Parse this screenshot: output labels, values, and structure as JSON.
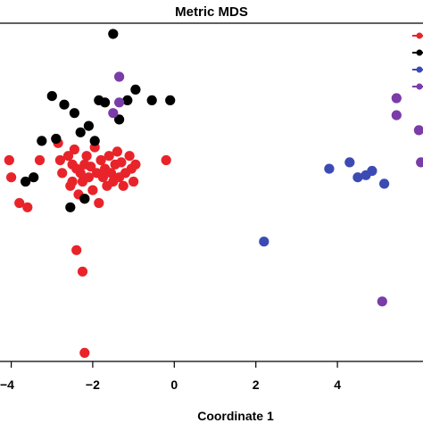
{
  "chart_data": {
    "type": "scatter",
    "title": "Metric  MDS",
    "xlabel": "Coordinate 1",
    "ylabel": "",
    "x_ticks": [
      "−4",
      "−2",
      "0",
      "2",
      "4"
    ],
    "x_tick_values": [
      -4,
      -2,
      0,
      2,
      4
    ],
    "xlim": [
      -4.1,
      6.1
    ],
    "ylim": [
      -4.3,
      3.6
    ],
    "grid": false,
    "legend": "top-right",
    "series": [
      {
        "color": "#e8242a",
        "points": [
          [
            -4.05,
            0.4
          ],
          [
            -4.0,
            0.0
          ],
          [
            -3.8,
            -0.6
          ],
          [
            -3.6,
            -0.7
          ],
          [
            -3.3,
            0.4
          ],
          [
            -2.85,
            0.8
          ],
          [
            -2.8,
            0.4
          ],
          [
            -2.75,
            0.1
          ],
          [
            -2.6,
            0.5
          ],
          [
            -2.55,
            -0.2
          ],
          [
            -2.5,
            0.3
          ],
          [
            -2.5,
            -0.1
          ],
          [
            -2.45,
            0.65
          ],
          [
            -2.4,
            0.2
          ],
          [
            -2.35,
            -0.4
          ],
          [
            -2.3,
            0.1
          ],
          [
            -2.25,
            -0.1
          ],
          [
            -2.2,
            0.3
          ],
          [
            -2.2,
            -0.5
          ],
          [
            -2.15,
            0.5
          ],
          [
            -2.1,
            0.0
          ],
          [
            -2.05,
            0.25
          ],
          [
            -2.0,
            -0.3
          ],
          [
            -1.95,
            0.7
          ],
          [
            -1.9,
            0.1
          ],
          [
            -1.85,
            -0.6
          ],
          [
            -1.8,
            0.4
          ],
          [
            -1.75,
            0.0
          ],
          [
            -1.7,
            0.2
          ],
          [
            -1.65,
            -0.2
          ],
          [
            -1.6,
            0.5
          ],
          [
            -1.55,
            0.1
          ],
          [
            -1.5,
            -0.1
          ],
          [
            -1.45,
            0.3
          ],
          [
            -1.4,
            0.6
          ],
          [
            -1.35,
            0.0
          ],
          [
            -1.3,
            0.35
          ],
          [
            -1.25,
            -0.2
          ],
          [
            -1.2,
            0.1
          ],
          [
            -1.1,
            0.5
          ],
          [
            -1.05,
            0.2
          ],
          [
            -1.0,
            -0.1
          ],
          [
            -0.95,
            0.3
          ],
          [
            -0.2,
            0.4
          ],
          [
            -2.4,
            -1.7
          ],
          [
            -2.25,
            -2.2
          ],
          [
            -2.2,
            -4.1
          ]
        ]
      },
      {
        "color": "#000000",
        "points": [
          [
            -1.5,
            3.35
          ],
          [
            -3.0,
            1.9
          ],
          [
            -2.7,
            1.7
          ],
          [
            -2.45,
            1.5
          ],
          [
            -2.3,
            1.05
          ],
          [
            -2.1,
            1.2
          ],
          [
            -1.85,
            1.8
          ],
          [
            -1.7,
            1.75
          ],
          [
            -1.35,
            1.35
          ],
          [
            -1.15,
            1.8
          ],
          [
            -0.95,
            2.05
          ],
          [
            -0.55,
            1.8
          ],
          [
            -0.1,
            1.8
          ],
          [
            -3.25,
            0.85
          ],
          [
            -2.9,
            0.9
          ],
          [
            -3.45,
            0.0
          ],
          [
            -3.65,
            -0.1
          ],
          [
            -2.55,
            -0.7
          ],
          [
            -2.2,
            -0.5
          ],
          [
            -1.95,
            0.85
          ]
        ]
      },
      {
        "color": "#3c4bb4",
        "points": [
          [
            3.8,
            0.2
          ],
          [
            4.3,
            0.35
          ],
          [
            4.5,
            0.0
          ],
          [
            4.7,
            0.05
          ],
          [
            4.85,
            0.15
          ],
          [
            5.15,
            -0.15
          ],
          [
            2.2,
            -1.5
          ]
        ]
      },
      {
        "color": "#7a3ca8",
        "points": [
          [
            -1.35,
            2.35
          ],
          [
            -1.35,
            1.75
          ],
          [
            -1.5,
            1.5
          ],
          [
            5.45,
            1.85
          ],
          [
            5.45,
            1.45
          ],
          [
            6.0,
            1.1
          ],
          [
            6.05,
            0.35
          ],
          [
            5.1,
            -2.9
          ]
        ]
      }
    ]
  }
}
